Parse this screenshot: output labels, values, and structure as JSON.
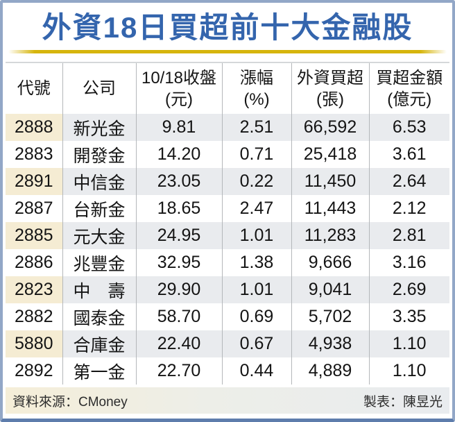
{
  "title": "外資18日買超前十大金融股",
  "chart_data": {
    "type": "table",
    "title": "外資18日買超前十大金融股",
    "columns": [
      "代號",
      "公司",
      "10/18收盤(元)",
      "漲幅(%)",
      "外資買超(張)",
      "買超金額(億元)"
    ],
    "rows": [
      [
        "2888",
        "新光金",
        "9.81",
        "2.51",
        "66,592",
        "6.53"
      ],
      [
        "2883",
        "開發金",
        "14.20",
        "0.71",
        "25,418",
        "3.61"
      ],
      [
        "2891",
        "中信金",
        "23.05",
        "0.22",
        "11,450",
        "2.64"
      ],
      [
        "2887",
        "台新金",
        "18.65",
        "2.47",
        "11,443",
        "2.12"
      ],
      [
        "2885",
        "元大金",
        "24.95",
        "1.01",
        "11,283",
        "2.81"
      ],
      [
        "2886",
        "兆豐金",
        "32.95",
        "1.38",
        "9,666",
        "3.16"
      ],
      [
        "2823",
        "中　壽",
        "29.90",
        "1.01",
        "9,041",
        "2.69"
      ],
      [
        "2882",
        "國泰金",
        "58.70",
        "0.69",
        "5,702",
        "3.35"
      ],
      [
        "5880",
        "合庫金",
        "22.40",
        "0.67",
        "4,938",
        "1.10"
      ],
      [
        "2892",
        "第一金",
        "22.70",
        "0.44",
        "4,889",
        "1.10"
      ]
    ]
  },
  "table": {
    "headers": [
      {
        "line1": "代號",
        "line2": ""
      },
      {
        "line1": "公司",
        "line2": ""
      },
      {
        "line1": "10/18收盤",
        "line2": "(元)"
      },
      {
        "line1": "漲幅",
        "line2": "(%)"
      },
      {
        "line1": "外資買超",
        "line2": "(張)"
      },
      {
        "line1": "買超金額",
        "line2": "(億元)"
      }
    ]
  },
  "footer": {
    "source": "資料來源：CMoney",
    "credit": "製表：陳昱光"
  },
  "colors": {
    "title_blue": "#3465ad",
    "gold_rule": "#d6b50c",
    "frame_blue": "#92a7c7",
    "frame_blue_dark": "#5e7dac",
    "row_tint": "#e9ebee",
    "code_cell_tint": "#f5ecd3",
    "footer_gradient_left": "#f5eed8",
    "footer_gradient_right": "#e9ecef",
    "text_dark": "#141414"
  }
}
